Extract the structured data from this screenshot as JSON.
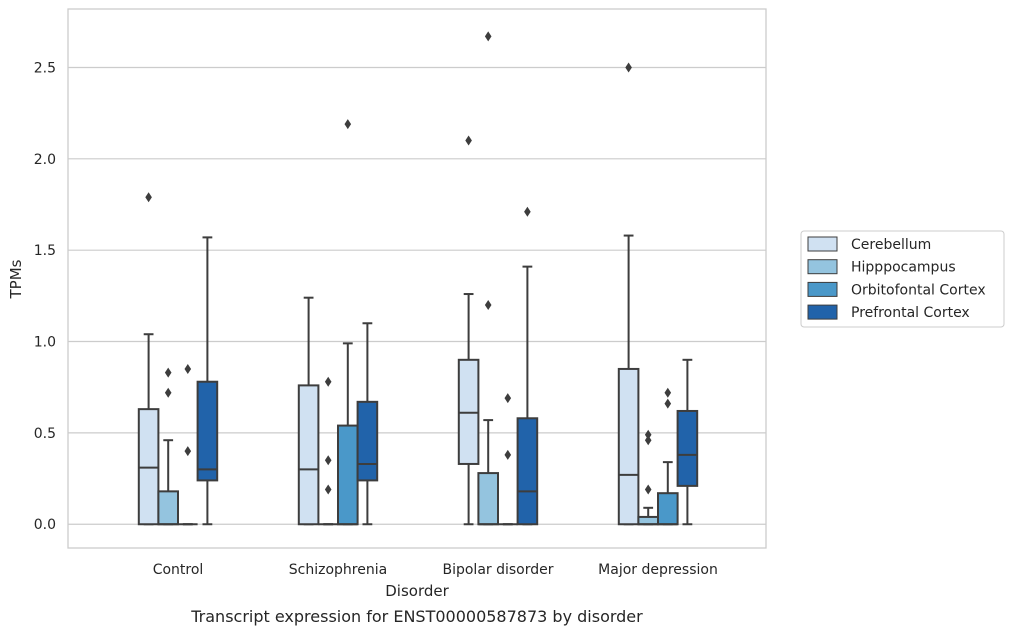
{
  "chart_data": {
    "type": "box",
    "xlabel": "Disorder",
    "ylabel": "TPMs",
    "caption": "Transcript expression for ENST00000587873 by disorder",
    "ylim": [
      -0.13,
      2.82
    ],
    "yticks": [
      0.0,
      0.5,
      1.0,
      1.5,
      2.0,
      2.5
    ],
    "ytick_labels": [
      "0.0",
      "0.5",
      "1.0",
      "1.5",
      "2.0",
      "2.5"
    ],
    "grid": "horizontal",
    "legend_position": "right",
    "categories": [
      "Control",
      "Schizophrenia",
      "Bipolar disorder",
      "Major depression"
    ],
    "series": [
      {
        "name": "Cerebellum",
        "color": "#d0e1f2",
        "boxes": [
          {
            "min": 0.0,
            "q1": 0.0,
            "median": 0.31,
            "q3": 0.63,
            "max": 1.04,
            "outliers": [
              1.79
            ]
          },
          {
            "min": 0.0,
            "q1": 0.0,
            "median": 0.3,
            "q3": 0.76,
            "max": 1.24,
            "outliers": []
          },
          {
            "min": 0.0,
            "q1": 0.33,
            "median": 0.61,
            "q3": 0.9,
            "max": 1.26,
            "outliers": [
              2.1
            ]
          },
          {
            "min": 0.0,
            "q1": 0.0,
            "median": 0.27,
            "q3": 0.85,
            "max": 1.58,
            "outliers": [
              2.5
            ]
          }
        ]
      },
      {
        "name": "Hipppocampus",
        "color": "#94c4df",
        "boxes": [
          {
            "min": 0.0,
            "q1": 0.0,
            "median": 0.0,
            "q3": 0.18,
            "max": 0.46,
            "outliers": [
              0.72,
              0.83
            ]
          },
          {
            "min": 0.0,
            "q1": 0.0,
            "median": 0.0,
            "q3": 0.0,
            "max": 0.0,
            "outliers": [
              0.19,
              0.35,
              0.78
            ]
          },
          {
            "min": 0.0,
            "q1": 0.0,
            "median": 0.0,
            "q3": 0.28,
            "max": 0.57,
            "outliers": [
              1.2,
              2.67
            ]
          },
          {
            "min": 0.0,
            "q1": 0.0,
            "median": 0.0,
            "q3": 0.04,
            "max": 0.09,
            "outliers": [
              0.19,
              0.46,
              0.49
            ]
          }
        ]
      },
      {
        "name": "Orbitofontal Cortex",
        "color": "#4a98c9",
        "boxes": [
          {
            "min": 0.0,
            "q1": 0.0,
            "median": 0.0,
            "q3": 0.0,
            "max": 0.0,
            "outliers": [
              0.4,
              0.85
            ]
          },
          {
            "min": 0.0,
            "q1": 0.0,
            "median": 0.0,
            "q3": 0.54,
            "max": 0.99,
            "outliers": [
              2.19
            ]
          },
          {
            "min": 0.0,
            "q1": 0.0,
            "median": 0.0,
            "q3": 0.0,
            "max": 0.0,
            "outliers": [
              0.38,
              0.69
            ]
          },
          {
            "min": 0.0,
            "q1": 0.0,
            "median": 0.0,
            "q3": 0.17,
            "max": 0.34,
            "outliers": [
              0.66,
              0.72
            ]
          }
        ]
      },
      {
        "name": "Prefrontal Cortex",
        "color": "#2163aa",
        "boxes": [
          {
            "min": 0.0,
            "q1": 0.24,
            "median": 0.3,
            "q3": 0.78,
            "max": 1.57,
            "outliers": []
          },
          {
            "min": 0.0,
            "q1": 0.24,
            "median": 0.33,
            "q3": 0.67,
            "max": 1.1,
            "outliers": []
          },
          {
            "min": 0.0,
            "q1": 0.0,
            "median": 0.18,
            "q3": 0.58,
            "max": 1.41,
            "outliers": [
              1.71
            ]
          },
          {
            "min": 0.0,
            "q1": 0.21,
            "median": 0.38,
            "q3": 0.62,
            "max": 0.9,
            "outliers": []
          }
        ]
      }
    ]
  }
}
